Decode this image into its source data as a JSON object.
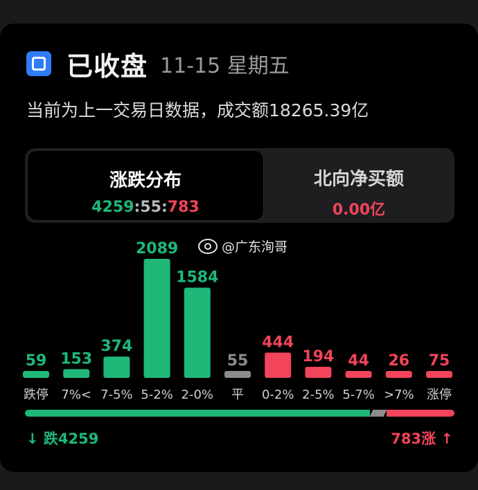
{
  "header": {
    "status": "已收盘",
    "date": "11-15 星期五",
    "subtitle": "当前为上一交易日数据，成交额18265.39亿"
  },
  "tabs": {
    "distribution": {
      "label": "涨跌分布",
      "down": "4259",
      "sep1": ":",
      "flat": "55",
      "sep2": ":",
      "up": "783"
    },
    "northbound": {
      "label": "北向净买额",
      "value": "0.00亿"
    }
  },
  "watermark": {
    "text": "@广东洵哥"
  },
  "chart_data": {
    "type": "bar",
    "categories": [
      "跌停",
      "7%<",
      "7-5%",
      "5-2%",
      "2-0%",
      "平",
      "0-2%",
      "2-5%",
      "5-7%",
      ">7%",
      "涨停"
    ],
    "values": [
      59,
      153,
      374,
      2089,
      1584,
      55,
      444,
      194,
      44,
      26,
      75
    ],
    "colors": [
      "#1fb879",
      "#1fb879",
      "#1fb879",
      "#1fb879",
      "#1fb879",
      "#8c8c90",
      "#f2445a",
      "#f2445a",
      "#f2445a",
      "#f2445a",
      "#f2445a"
    ],
    "title": "",
    "xlabel": "",
    "ylabel": ""
  },
  "breadth_bar": {
    "down_count": 4259,
    "flat_count": 55,
    "up_count": 783,
    "down_color": "#1fb879",
    "flat_color": "#8c8c90",
    "up_color": "#f2445a"
  },
  "footer": {
    "down_label": "↓ 跌4259",
    "up_label": "783涨 ↑"
  }
}
